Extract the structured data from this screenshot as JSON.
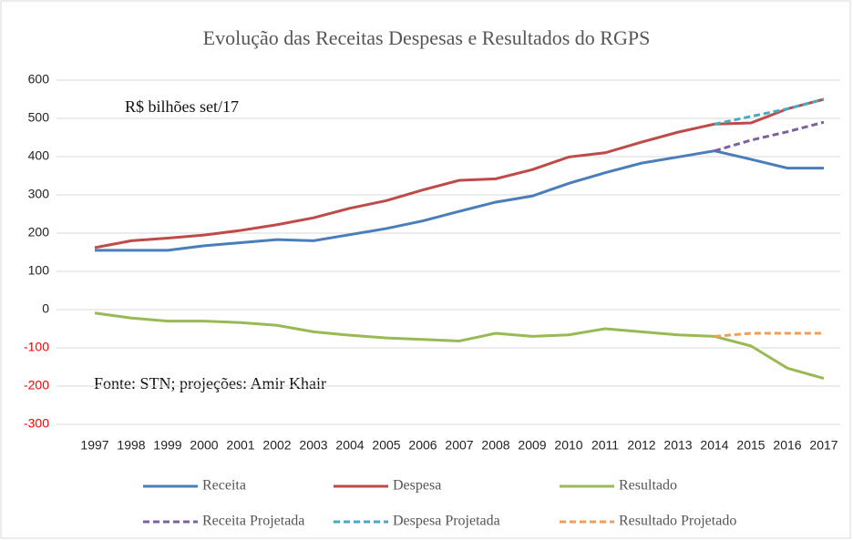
{
  "chart_data": {
    "type": "line",
    "title": "Evolução das Receitas Despesas e Resultados do RGPS",
    "annotations": [
      "R$ bilhões set/17",
      "Fonte: STN; projeções: Amir Khair"
    ],
    "categories": [
      "1997",
      "1998",
      "1999",
      "2000",
      "2001",
      "2002",
      "2003",
      "2004",
      "2005",
      "2006",
      "2007",
      "2008",
      "2009",
      "2010",
      "2011",
      "2012",
      "2013",
      "2014",
      "2015",
      "2016",
      "2017"
    ],
    "series": [
      {
        "name": "Receita",
        "color": "#4a7ebb",
        "dashed": false,
        "values": [
          155,
          155,
          155,
          167,
          175,
          183,
          180,
          196,
          212,
          232,
          257,
          281,
          297,
          330,
          358,
          383,
          399,
          415,
          393,
          370,
          370
        ]
      },
      {
        "name": "Despesa",
        "color": "#be4b48",
        "dashed": false,
        "values": [
          162,
          180,
          187,
          195,
          207,
          222,
          240,
          265,
          285,
          313,
          338,
          342,
          366,
          399,
          410,
          438,
          464,
          485,
          488,
          525,
          550
        ]
      },
      {
        "name": "Resultado",
        "color": "#98b954",
        "dashed": false,
        "values": [
          -9,
          -22,
          -30,
          -30,
          -34,
          -41,
          -58,
          -67,
          -74,
          -78,
          -82,
          -62,
          -70,
          -66,
          -50,
          -58,
          -66,
          -70,
          -95,
          -153,
          -180
        ]
      },
      {
        "name": "Receita Projetada",
        "color": "#7d60a0",
        "dashed": true,
        "values": [
          null,
          null,
          null,
          null,
          null,
          null,
          null,
          null,
          null,
          null,
          null,
          null,
          null,
          null,
          null,
          null,
          null,
          415,
          443,
          465,
          490
        ]
      },
      {
        "name": "Despesa Projetada",
        "color": "#46aac5",
        "dashed": true,
        "values": [
          null,
          null,
          null,
          null,
          null,
          null,
          null,
          null,
          null,
          null,
          null,
          null,
          null,
          null,
          null,
          null,
          null,
          485,
          505,
          525,
          550
        ]
      },
      {
        "name": "Resultado Projetado",
        "color": "#f59d56",
        "dashed": true,
        "values": [
          null,
          null,
          null,
          null,
          null,
          null,
          null,
          null,
          null,
          null,
          null,
          null,
          null,
          null,
          null,
          null,
          null,
          -70,
          -62,
          -62,
          -62
        ]
      }
    ],
    "ylim": [
      -300,
      600
    ],
    "yticks": [
      -300,
      -200,
      -100,
      0,
      100,
      200,
      300,
      400,
      500,
      600
    ],
    "negative_tick_color": "#ff0000",
    "grid": true,
    "legend": "bottom"
  }
}
